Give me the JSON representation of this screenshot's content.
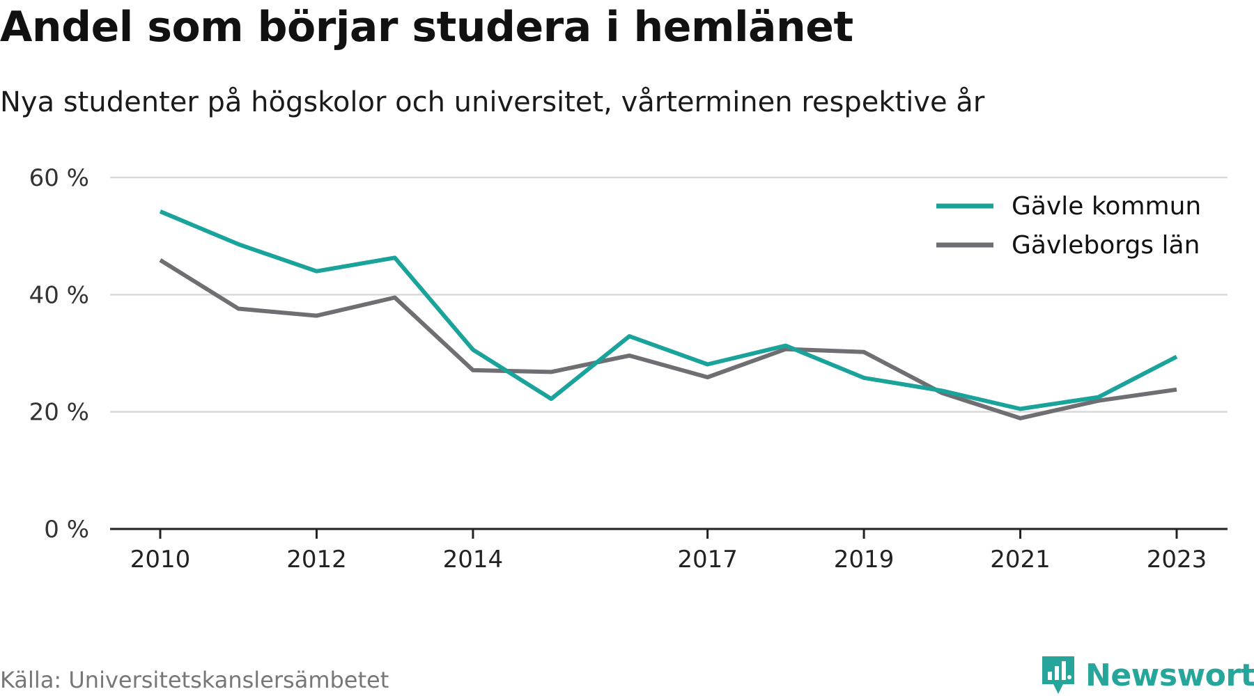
{
  "header": {
    "title": "Andel som börjar studera i hemlänet",
    "subtitle": "Nya studenter på högskolor och universitet, vårterminen respektive år"
  },
  "footer": {
    "source": "Källa: Universitetskanslersämbetet",
    "brand": "Newsworthy"
  },
  "colors": {
    "gavle_kommun": "#1aa39a",
    "gavleborgs_lan": "#6e6e73",
    "grid": "#d9d9d9",
    "axis": "#222222",
    "brand": "#26a69a"
  },
  "chart_data": {
    "type": "line",
    "title": "Andel som börjar studera i hemlänet",
    "subtitle": "Nya studenter på högskolor och universitet, vårterminen respektive år",
    "xlabel": "",
    "ylabel": "",
    "x": [
      2010,
      2011,
      2012,
      2013,
      2014,
      2015,
      2016,
      2017,
      2018,
      2019,
      2020,
      2021,
      2022,
      2023
    ],
    "xticks": [
      "2010",
      "2012",
      "2014",
      "2017",
      "2019",
      "2021",
      "2023"
    ],
    "yticks": [
      "0 %",
      "20 %",
      "40 %",
      "60 %"
    ],
    "ylim": [
      0,
      60
    ],
    "grid": true,
    "legend": "top-right",
    "series": [
      {
        "name": "Gävle kommun",
        "color": "#1aa39a",
        "values": [
          54.2,
          48.6,
          44.0,
          46.3,
          30.6,
          22.2,
          32.9,
          28.1,
          31.3,
          25.8,
          23.6,
          20.5,
          22.5,
          29.4
        ]
      },
      {
        "name": "Gävleborgs län",
        "color": "#6e6e73",
        "values": [
          45.9,
          37.6,
          36.4,
          39.5,
          27.1,
          26.8,
          29.6,
          25.9,
          30.7,
          30.2,
          23.2,
          18.9,
          21.9,
          23.8
        ]
      }
    ]
  }
}
